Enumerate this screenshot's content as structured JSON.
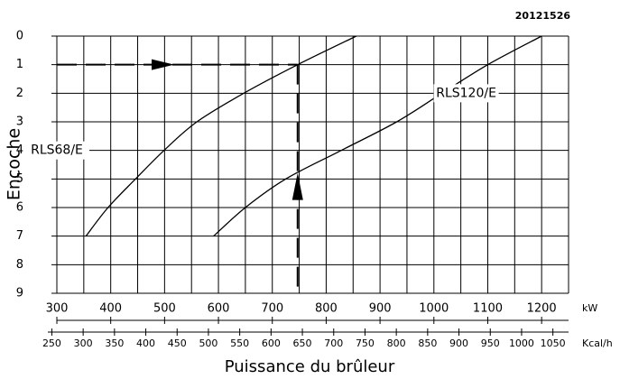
{
  "chart_data": {
    "type": "line",
    "code": "20121526",
    "x_label": "Puissance du brûleur",
    "y_label": "Encoche",
    "x_unit": "kW",
    "x2_unit": "Kcal/h",
    "xlim": [
      300,
      1250
    ],
    "xticks": [
      300,
      400,
      500,
      600,
      700,
      800,
      900,
      1000,
      1100,
      1200
    ],
    "xgrid_step": 50,
    "x2lim": [
      258,
      1075
    ],
    "x2ticks": [
      250,
      300,
      350,
      400,
      450,
      500,
      550,
      600,
      650,
      700,
      750,
      800,
      850,
      900,
      950,
      1000,
      1050
    ],
    "ylim": [
      9,
      0
    ],
    "yticks": [
      0,
      1,
      2,
      3,
      4,
      5,
      6,
      7,
      8,
      9
    ],
    "grid": true,
    "series": [
      {
        "name": "RLS68/E",
        "color": "#000000",
        "x": [
          354,
          395,
          446,
          499,
          560,
          647,
          747,
          856
        ],
        "values": [
          7,
          6,
          5,
          4,
          3,
          2,
          1,
          0
        ],
        "label_at": [
          300,
          4
        ]
      },
      {
        "name": "RLS120/E",
        "color": "#000000",
        "x": [
          591,
          650,
          725,
          828,
          931,
          1015,
          1100,
          1200
        ],
        "values": [
          7,
          6,
          5,
          4,
          3,
          2,
          1,
          0
        ],
        "label_at": [
          1060,
          2
        ]
      }
    ],
    "reading": {
      "x": 747,
      "y": 1
    }
  }
}
